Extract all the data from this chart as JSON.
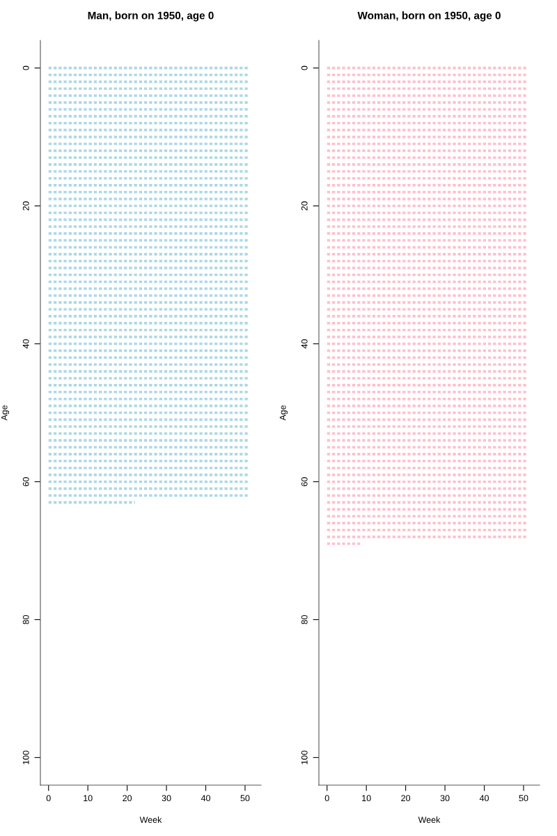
{
  "chart_data": [
    {
      "type": "line",
      "title": "Man, born on 1950, age 0",
      "xlabel": "Week",
      "ylabel": "Age",
      "xlim": [
        -2.08,
        54.08
      ],
      "ylim": [
        104,
        -4
      ],
      "xticks": [
        0,
        10,
        20,
        30,
        40,
        50
      ],
      "yticks": [
        0,
        20,
        40,
        60,
        80,
        100
      ],
      "line_style": "dotted",
      "marker": "none",
      "grid": false,
      "series": [
        {
          "x": [
            0,
            51
          ],
          "values": [
            0,
            0
          ],
          "color": "#add8e6"
        },
        {
          "x": [
            0,
            51
          ],
          "values": [
            1,
            1
          ],
          "color": "#add8e6"
        },
        {
          "x": [
            0,
            51
          ],
          "values": [
            2,
            2
          ],
          "color": "#add8e6"
        },
        {
          "x": [
            0,
            51
          ],
          "values": [
            3,
            3
          ],
          "color": "#add8e6"
        },
        {
          "x": [
            0,
            51
          ],
          "values": [
            4,
            4
          ],
          "color": "#add8e6"
        },
        {
          "x": [
            0,
            51
          ],
          "values": [
            5,
            5
          ],
          "color": "#add8e6"
        },
        {
          "x": [
            0,
            51
          ],
          "values": [
            6,
            6
          ],
          "color": "#add8e6"
        },
        {
          "x": [
            0,
            51
          ],
          "values": [
            7,
            7
          ],
          "color": "#add8e6"
        },
        {
          "x": [
            0,
            51
          ],
          "values": [
            8,
            8
          ],
          "color": "#add8e6"
        },
        {
          "x": [
            0,
            51
          ],
          "values": [
            9,
            9
          ],
          "color": "#add8e6"
        },
        {
          "x": [
            0,
            51
          ],
          "values": [
            10,
            10
          ],
          "color": "#add8e6"
        },
        {
          "x": [
            0,
            51
          ],
          "values": [
            11,
            11
          ],
          "color": "#add8e6"
        },
        {
          "x": [
            0,
            51
          ],
          "values": [
            12,
            12
          ],
          "color": "#add8e6"
        },
        {
          "x": [
            0,
            51
          ],
          "values": [
            13,
            13
          ],
          "color": "#add8e6"
        },
        {
          "x": [
            0,
            51
          ],
          "values": [
            14,
            14
          ],
          "color": "#add8e6"
        },
        {
          "x": [
            0,
            51
          ],
          "values": [
            15,
            15
          ],
          "color": "#add8e6"
        },
        {
          "x": [
            0,
            51
          ],
          "values": [
            16,
            16
          ],
          "color": "#add8e6"
        },
        {
          "x": [
            0,
            51
          ],
          "values": [
            17,
            17
          ],
          "color": "#add8e6"
        },
        {
          "x": [
            0,
            51
          ],
          "values": [
            18,
            18
          ],
          "color": "#add8e6"
        },
        {
          "x": [
            0,
            51
          ],
          "values": [
            19,
            19
          ],
          "color": "#add8e6"
        },
        {
          "x": [
            0,
            51
          ],
          "values": [
            20,
            20
          ],
          "color": "#add8e6"
        },
        {
          "x": [
            0,
            51
          ],
          "values": [
            21,
            21
          ],
          "color": "#add8e6"
        },
        {
          "x": [
            0,
            51
          ],
          "values": [
            22,
            22
          ],
          "color": "#add8e6"
        },
        {
          "x": [
            0,
            51
          ],
          "values": [
            23,
            23
          ],
          "color": "#add8e6"
        },
        {
          "x": [
            0,
            51
          ],
          "values": [
            24,
            24
          ],
          "color": "#add8e6"
        },
        {
          "x": [
            0,
            51
          ],
          "values": [
            25,
            25
          ],
          "color": "#add8e6"
        },
        {
          "x": [
            0,
            51
          ],
          "values": [
            26,
            26
          ],
          "color": "#add8e6"
        },
        {
          "x": [
            0,
            51
          ],
          "values": [
            27,
            27
          ],
          "color": "#add8e6"
        },
        {
          "x": [
            0,
            51
          ],
          "values": [
            28,
            28
          ],
          "color": "#add8e6"
        },
        {
          "x": [
            0,
            51
          ],
          "values": [
            29,
            29
          ],
          "color": "#add8e6"
        },
        {
          "x": [
            0,
            51
          ],
          "values": [
            30,
            30
          ],
          "color": "#add8e6"
        },
        {
          "x": [
            0,
            51
          ],
          "values": [
            31,
            31
          ],
          "color": "#add8e6"
        },
        {
          "x": [
            0,
            51
          ],
          "values": [
            32,
            32
          ],
          "color": "#add8e6"
        },
        {
          "x": [
            0,
            51
          ],
          "values": [
            33,
            33
          ],
          "color": "#add8e6"
        },
        {
          "x": [
            0,
            51
          ],
          "values": [
            34,
            34
          ],
          "color": "#add8e6"
        },
        {
          "x": [
            0,
            51
          ],
          "values": [
            35,
            35
          ],
          "color": "#add8e6"
        },
        {
          "x": [
            0,
            51
          ],
          "values": [
            36,
            36
          ],
          "color": "#add8e6"
        },
        {
          "x": [
            0,
            51
          ],
          "values": [
            37,
            37
          ],
          "color": "#add8e6"
        },
        {
          "x": [
            0,
            51
          ],
          "values": [
            38,
            38
          ],
          "color": "#add8e6"
        },
        {
          "x": [
            0,
            51
          ],
          "values": [
            39,
            39
          ],
          "color": "#add8e6"
        },
        {
          "x": [
            0,
            51
          ],
          "values": [
            40,
            40
          ],
          "color": "#add8e6"
        },
        {
          "x": [
            0,
            51
          ],
          "values": [
            41,
            41
          ],
          "color": "#add8e6"
        },
        {
          "x": [
            0,
            51
          ],
          "values": [
            42,
            42
          ],
          "color": "#add8e6"
        },
        {
          "x": [
            0,
            51
          ],
          "values": [
            43,
            43
          ],
          "color": "#add8e6"
        },
        {
          "x": [
            0,
            51
          ],
          "values": [
            44,
            44
          ],
          "color": "#add8e6"
        },
        {
          "x": [
            0,
            51
          ],
          "values": [
            45,
            45
          ],
          "color": "#add8e6"
        },
        {
          "x": [
            0,
            51
          ],
          "values": [
            46,
            46
          ],
          "color": "#add8e6"
        },
        {
          "x": [
            0,
            51
          ],
          "values": [
            47,
            47
          ],
          "color": "#add8e6"
        },
        {
          "x": [
            0,
            51
          ],
          "values": [
            48,
            48
          ],
          "color": "#add8e6"
        },
        {
          "x": [
            0,
            51
          ],
          "values": [
            49,
            49
          ],
          "color": "#add8e6"
        },
        {
          "x": [
            0,
            51
          ],
          "values": [
            50,
            50
          ],
          "color": "#add8e6"
        },
        {
          "x": [
            0,
            51
          ],
          "values": [
            51,
            51
          ],
          "color": "#add8e6"
        },
        {
          "x": [
            0,
            51
          ],
          "values": [
            52,
            52
          ],
          "color": "#add8e6"
        },
        {
          "x": [
            0,
            51
          ],
          "values": [
            53,
            53
          ],
          "color": "#add8e6"
        },
        {
          "x": [
            0,
            51
          ],
          "values": [
            54,
            54
          ],
          "color": "#add8e6"
        },
        {
          "x": [
            0,
            51
          ],
          "values": [
            55,
            55
          ],
          "color": "#add8e6"
        },
        {
          "x": [
            0,
            51
          ],
          "values": [
            56,
            56
          ],
          "color": "#add8e6"
        },
        {
          "x": [
            0,
            51
          ],
          "values": [
            57,
            57
          ],
          "color": "#add8e6"
        },
        {
          "x": [
            0,
            51
          ],
          "values": [
            58,
            58
          ],
          "color": "#add8e6"
        },
        {
          "x": [
            0,
            51
          ],
          "values": [
            59,
            59
          ],
          "color": "#add8e6"
        },
        {
          "x": [
            0,
            51
          ],
          "values": [
            60,
            60
          ],
          "color": "#add8e6"
        },
        {
          "x": [
            0,
            51
          ],
          "values": [
            61,
            61
          ],
          "color": "#add8e6"
        },
        {
          "x": [
            0,
            51
          ],
          "values": [
            62,
            62
          ],
          "color": "#add8e6"
        },
        {
          "x": [
            0,
            22
          ],
          "values": [
            63,
            63
          ],
          "color": "#add8e6"
        }
      ]
    },
    {
      "type": "line",
      "title": "Woman, born on 1950, age 0",
      "xlabel": "Week",
      "ylabel": "Age",
      "xlim": [
        -2.08,
        54.08
      ],
      "ylim": [
        104,
        -4
      ],
      "xticks": [
        0,
        10,
        20,
        30,
        40,
        50
      ],
      "yticks": [
        0,
        20,
        40,
        60,
        80,
        100
      ],
      "line_style": "dotted",
      "marker": "none",
      "grid": false,
      "series": [
        {
          "x": [
            0,
            51
          ],
          "values": [
            0,
            0
          ],
          "color": "#ffc0cb"
        },
        {
          "x": [
            0,
            51
          ],
          "values": [
            1,
            1
          ],
          "color": "#ffc0cb"
        },
        {
          "x": [
            0,
            51
          ],
          "values": [
            2,
            2
          ],
          "color": "#ffc0cb"
        },
        {
          "x": [
            0,
            51
          ],
          "values": [
            3,
            3
          ],
          "color": "#ffc0cb"
        },
        {
          "x": [
            0,
            51
          ],
          "values": [
            4,
            4
          ],
          "color": "#ffc0cb"
        },
        {
          "x": [
            0,
            51
          ],
          "values": [
            5,
            5
          ],
          "color": "#ffc0cb"
        },
        {
          "x": [
            0,
            51
          ],
          "values": [
            6,
            6
          ],
          "color": "#ffc0cb"
        },
        {
          "x": [
            0,
            51
          ],
          "values": [
            7,
            7
          ],
          "color": "#ffc0cb"
        },
        {
          "x": [
            0,
            51
          ],
          "values": [
            8,
            8
          ],
          "color": "#ffc0cb"
        },
        {
          "x": [
            0,
            51
          ],
          "values": [
            9,
            9
          ],
          "color": "#ffc0cb"
        },
        {
          "x": [
            0,
            51
          ],
          "values": [
            10,
            10
          ],
          "color": "#ffc0cb"
        },
        {
          "x": [
            0,
            51
          ],
          "values": [
            11,
            11
          ],
          "color": "#ffc0cb"
        },
        {
          "x": [
            0,
            51
          ],
          "values": [
            12,
            12
          ],
          "color": "#ffc0cb"
        },
        {
          "x": [
            0,
            51
          ],
          "values": [
            13,
            13
          ],
          "color": "#ffc0cb"
        },
        {
          "x": [
            0,
            51
          ],
          "values": [
            14,
            14
          ],
          "color": "#ffc0cb"
        },
        {
          "x": [
            0,
            51
          ],
          "values": [
            15,
            15
          ],
          "color": "#ffc0cb"
        },
        {
          "x": [
            0,
            51
          ],
          "values": [
            16,
            16
          ],
          "color": "#ffc0cb"
        },
        {
          "x": [
            0,
            51
          ],
          "values": [
            17,
            17
          ],
          "color": "#ffc0cb"
        },
        {
          "x": [
            0,
            51
          ],
          "values": [
            18,
            18
          ],
          "color": "#ffc0cb"
        },
        {
          "x": [
            0,
            51
          ],
          "values": [
            19,
            19
          ],
          "color": "#ffc0cb"
        },
        {
          "x": [
            0,
            51
          ],
          "values": [
            20,
            20
          ],
          "color": "#ffc0cb"
        },
        {
          "x": [
            0,
            51
          ],
          "values": [
            21,
            21
          ],
          "color": "#ffc0cb"
        },
        {
          "x": [
            0,
            51
          ],
          "values": [
            22,
            22
          ],
          "color": "#ffc0cb"
        },
        {
          "x": [
            0,
            51
          ],
          "values": [
            23,
            23
          ],
          "color": "#ffc0cb"
        },
        {
          "x": [
            0,
            51
          ],
          "values": [
            24,
            24
          ],
          "color": "#ffc0cb"
        },
        {
          "x": [
            0,
            51
          ],
          "values": [
            25,
            25
          ],
          "color": "#ffc0cb"
        },
        {
          "x": [
            0,
            51
          ],
          "values": [
            26,
            26
          ],
          "color": "#ffc0cb"
        },
        {
          "x": [
            0,
            51
          ],
          "values": [
            27,
            27
          ],
          "color": "#ffc0cb"
        },
        {
          "x": [
            0,
            51
          ],
          "values": [
            28,
            28
          ],
          "color": "#ffc0cb"
        },
        {
          "x": [
            0,
            51
          ],
          "values": [
            29,
            29
          ],
          "color": "#ffc0cb"
        },
        {
          "x": [
            0,
            51
          ],
          "values": [
            30,
            30
          ],
          "color": "#ffc0cb"
        },
        {
          "x": [
            0,
            51
          ],
          "values": [
            31,
            31
          ],
          "color": "#ffc0cb"
        },
        {
          "x": [
            0,
            51
          ],
          "values": [
            32,
            32
          ],
          "color": "#ffc0cb"
        },
        {
          "x": [
            0,
            51
          ],
          "values": [
            33,
            33
          ],
          "color": "#ffc0cb"
        },
        {
          "x": [
            0,
            51
          ],
          "values": [
            34,
            34
          ],
          "color": "#ffc0cb"
        },
        {
          "x": [
            0,
            51
          ],
          "values": [
            35,
            35
          ],
          "color": "#ffc0cb"
        },
        {
          "x": [
            0,
            51
          ],
          "values": [
            36,
            36
          ],
          "color": "#ffc0cb"
        },
        {
          "x": [
            0,
            51
          ],
          "values": [
            37,
            37
          ],
          "color": "#ffc0cb"
        },
        {
          "x": [
            0,
            51
          ],
          "values": [
            38,
            38
          ],
          "color": "#ffc0cb"
        },
        {
          "x": [
            0,
            51
          ],
          "values": [
            39,
            39
          ],
          "color": "#ffc0cb"
        },
        {
          "x": [
            0,
            51
          ],
          "values": [
            40,
            40
          ],
          "color": "#ffc0cb"
        },
        {
          "x": [
            0,
            51
          ],
          "values": [
            41,
            41
          ],
          "color": "#ffc0cb"
        },
        {
          "x": [
            0,
            51
          ],
          "values": [
            42,
            42
          ],
          "color": "#ffc0cb"
        },
        {
          "x": [
            0,
            51
          ],
          "values": [
            43,
            43
          ],
          "color": "#ffc0cb"
        },
        {
          "x": [
            0,
            51
          ],
          "values": [
            44,
            44
          ],
          "color": "#ffc0cb"
        },
        {
          "x": [
            0,
            51
          ],
          "values": [
            45,
            45
          ],
          "color": "#ffc0cb"
        },
        {
          "x": [
            0,
            51
          ],
          "values": [
            46,
            46
          ],
          "color": "#ffc0cb"
        },
        {
          "x": [
            0,
            51
          ],
          "values": [
            47,
            47
          ],
          "color": "#ffc0cb"
        },
        {
          "x": [
            0,
            51
          ],
          "values": [
            48,
            48
          ],
          "color": "#ffc0cb"
        },
        {
          "x": [
            0,
            51
          ],
          "values": [
            49,
            49
          ],
          "color": "#ffc0cb"
        },
        {
          "x": [
            0,
            51
          ],
          "values": [
            50,
            50
          ],
          "color": "#ffc0cb"
        },
        {
          "x": [
            0,
            51
          ],
          "values": [
            51,
            51
          ],
          "color": "#ffc0cb"
        },
        {
          "x": [
            0,
            51
          ],
          "values": [
            52,
            52
          ],
          "color": "#ffc0cb"
        },
        {
          "x": [
            0,
            51
          ],
          "values": [
            53,
            53
          ],
          "color": "#ffc0cb"
        },
        {
          "x": [
            0,
            51
          ],
          "values": [
            54,
            54
          ],
          "color": "#ffc0cb"
        },
        {
          "x": [
            0,
            51
          ],
          "values": [
            55,
            55
          ],
          "color": "#ffc0cb"
        },
        {
          "x": [
            0,
            51
          ],
          "values": [
            56,
            56
          ],
          "color": "#ffc0cb"
        },
        {
          "x": [
            0,
            51
          ],
          "values": [
            57,
            57
          ],
          "color": "#ffc0cb"
        },
        {
          "x": [
            0,
            51
          ],
          "values": [
            58,
            58
          ],
          "color": "#ffc0cb"
        },
        {
          "x": [
            0,
            51
          ],
          "values": [
            59,
            59
          ],
          "color": "#ffc0cb"
        },
        {
          "x": [
            0,
            51
          ],
          "values": [
            60,
            60
          ],
          "color": "#ffc0cb"
        },
        {
          "x": [
            0,
            51
          ],
          "values": [
            61,
            61
          ],
          "color": "#ffc0cb"
        },
        {
          "x": [
            0,
            51
          ],
          "values": [
            62,
            62
          ],
          "color": "#ffc0cb"
        },
        {
          "x": [
            0,
            51
          ],
          "values": [
            63,
            63
          ],
          "color": "#ffc0cb"
        },
        {
          "x": [
            0,
            51
          ],
          "values": [
            64,
            64
          ],
          "color": "#ffc0cb"
        },
        {
          "x": [
            0,
            51
          ],
          "values": [
            65,
            65
          ],
          "color": "#ffc0cb"
        },
        {
          "x": [
            0,
            51
          ],
          "values": [
            66,
            66
          ],
          "color": "#ffc0cb"
        },
        {
          "x": [
            0,
            51
          ],
          "values": [
            67,
            67
          ],
          "color": "#ffc0cb"
        },
        {
          "x": [
            0,
            51
          ],
          "values": [
            68,
            68
          ],
          "color": "#ffc0cb"
        },
        {
          "x": [
            0,
            9
          ],
          "values": [
            69,
            69
          ],
          "color": "#ffc0cb"
        }
      ]
    }
  ]
}
